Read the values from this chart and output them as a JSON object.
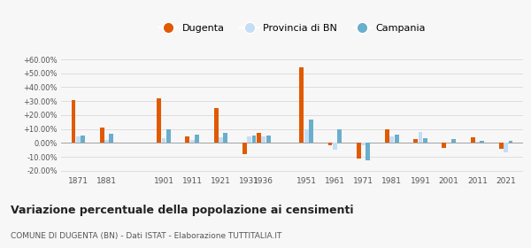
{
  "years": [
    1871,
    1881,
    1901,
    1911,
    1921,
    1931,
    1936,
    1951,
    1961,
    1971,
    1981,
    1991,
    2001,
    2011,
    2021
  ],
  "dugenta": [
    31.0,
    11.0,
    32.0,
    5.0,
    25.0,
    -8.0,
    7.5,
    54.0,
    -1.5,
    -11.0,
    10.0,
    3.0,
    -3.5,
    4.0,
    -4.0
  ],
  "provincia_bn": [
    5.0,
    2.0,
    3.5,
    2.0,
    4.0,
    5.0,
    4.5,
    10.0,
    -5.0,
    -1.5,
    5.0,
    8.0,
    0.5,
    1.0,
    -7.0
  ],
  "campania": [
    5.5,
    6.5,
    10.0,
    6.0,
    7.5,
    5.5,
    5.5,
    17.0,
    10.0,
    -12.5,
    6.0,
    3.5,
    3.0,
    1.5,
    1.5
  ],
  "dugenta_color": "#e05a00",
  "provincia_color": "#c5ddf5",
  "campania_color": "#6aaecc",
  "title": "Variazione percentuale della popolazione ai censimenti",
  "subtitle": "COMUNE DI DUGENTA (BN) - Dati ISTAT - Elaborazione TUTTITALIA.IT",
  "ylim": [
    -22,
    67
  ],
  "yticks": [
    -20,
    -10,
    0,
    10,
    20,
    30,
    40,
    50,
    60
  ],
  "ytick_labels": [
    "-20.00%",
    "-10.00%",
    "0.00%",
    "+10.00%",
    "+20.00%",
    "+30.00%",
    "+40.00%",
    "+50.00%",
    "+60.00%"
  ],
  "background_color": "#f7f7f7",
  "grid_color": "#d8d8d8",
  "legend_labels": [
    "Dugenta",
    "Provincia di BN",
    "Campania"
  ]
}
